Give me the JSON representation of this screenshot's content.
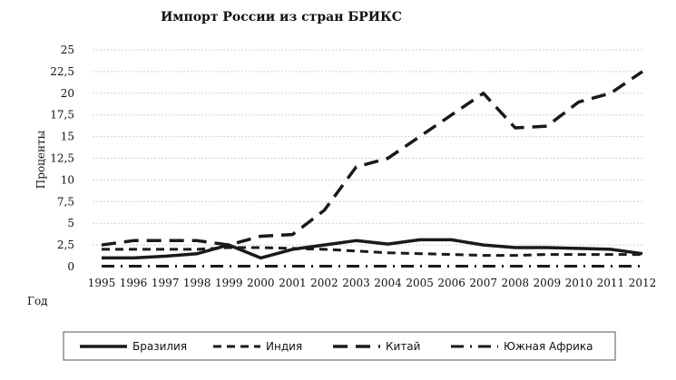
{
  "chart_data": {
    "type": "line",
    "title": "Импорт России из стран БРИКС",
    "xlabel": "Год",
    "ylabel": "Проценты",
    "ylim": [
      0,
      25
    ],
    "y_ticks": [
      "0",
      "2,5",
      "5",
      "7,5",
      "10",
      "12,5",
      "15",
      "17,5",
      "20",
      "22,5",
      "25"
    ],
    "grid": true,
    "legend_position": "bottom",
    "x": [
      "1995",
      "1996",
      "1997",
      "1998",
      "1999",
      "2000",
      "2001",
      "2002",
      "2003",
      "2004",
      "2005",
      "2006",
      "2007",
      "2008",
      "2009",
      "2010",
      "2011",
      "2012"
    ],
    "series": [
      {
        "name": "Бразилия",
        "style": "solid",
        "values": [
          1.0,
          1.0,
          1.2,
          1.5,
          2.5,
          1.0,
          2.0,
          2.5,
          3.0,
          2.6,
          3.1,
          3.1,
          2.5,
          2.2,
          2.2,
          2.1,
          2.0,
          1.5
        ]
      },
      {
        "name": "Индия",
        "style": "dashed",
        "values": [
          2.0,
          2.0,
          2.0,
          2.0,
          2.2,
          2.2,
          2.1,
          2.0,
          1.8,
          1.6,
          1.5,
          1.4,
          1.3,
          1.3,
          1.4,
          1.4,
          1.4,
          1.4
        ]
      },
      {
        "name": "Китай",
        "style": "longdash",
        "values": [
          2.5,
          3.0,
          3.0,
          3.0,
          2.5,
          3.5,
          3.7,
          6.5,
          11.5,
          12.5,
          15.0,
          17.5,
          20.0,
          16.0,
          16.2,
          19.0,
          20.0,
          22.5
        ]
      },
      {
        "name": "Южная Африка",
        "style": "dashdot",
        "values": [
          0.05,
          0.05,
          0.05,
          0.05,
          0.05,
          0.05,
          0.05,
          0.05,
          0.05,
          0.05,
          0.05,
          0.05,
          0.05,
          0.05,
          0.05,
          0.05,
          0.05,
          0.05
        ]
      }
    ]
  },
  "colors": {
    "line": "#1a1a1a",
    "grid": "#d0d0d0",
    "legend_border": "#555555"
  }
}
